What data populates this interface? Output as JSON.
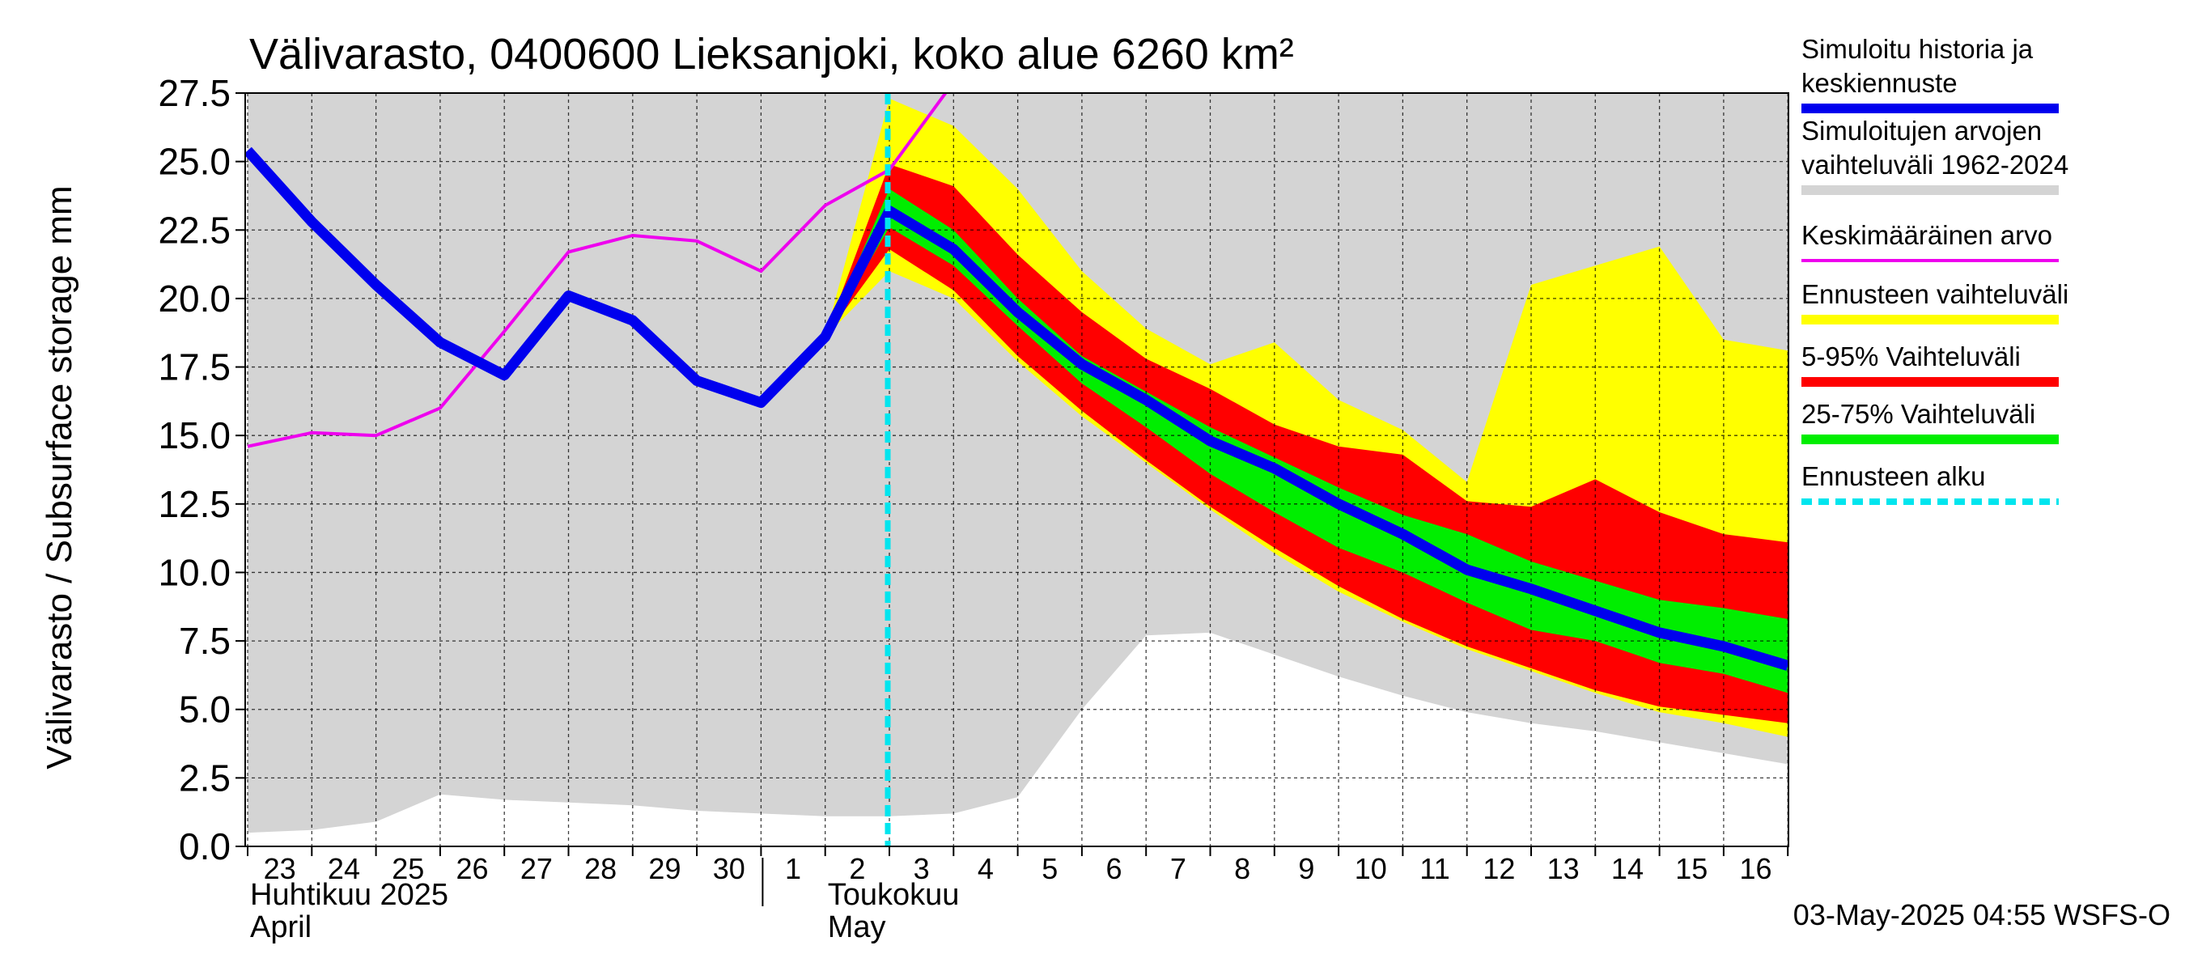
{
  "chart_data": {
    "type": "area",
    "title": "Välivarasto, 0400600 Lieksanjoki, koko alue 6260 km²",
    "ylabel": "Välivarasto / Subsurface storage  mm",
    "ylim": [
      0,
      27.5
    ],
    "yticks": [
      "0.0",
      "2.5",
      "5.0",
      "7.5",
      "10.0",
      "12.5",
      "15.0",
      "17.5",
      "20.0",
      "22.5",
      "25.0",
      "27.5"
    ],
    "x_dates": [
      "2025-04-23",
      "2025-04-24",
      "2025-04-25",
      "2025-04-26",
      "2025-04-27",
      "2025-04-28",
      "2025-04-29",
      "2025-04-30",
      "2025-05-01",
      "2025-05-02",
      "2025-05-03",
      "2025-05-04",
      "2025-05-05",
      "2025-05-06",
      "2025-05-07",
      "2025-05-08",
      "2025-05-09",
      "2025-05-10",
      "2025-05-11",
      "2025-05-12",
      "2025-05-13",
      "2025-05-14",
      "2025-05-15",
      "2025-05-16",
      "2025-05-17"
    ],
    "xtick_labels": [
      "23",
      "24",
      "25",
      "26",
      "27",
      "28",
      "29",
      "30",
      "1",
      "2",
      "3",
      "4",
      "5",
      "6",
      "7",
      "8",
      "9",
      "10",
      "11",
      "12",
      "13",
      "14",
      "15",
      "16"
    ],
    "month_labels": [
      {
        "line1": "Huhtikuu  2025",
        "line2": "April",
        "start_index": 0
      },
      {
        "line1": "Toukokuu",
        "line2": "May",
        "start_index": 9
      }
    ],
    "forecast_start_index": 10,
    "hist_range": {
      "x_index": [
        0,
        1,
        2,
        3,
        4,
        5,
        6,
        7,
        8,
        9,
        10,
        11,
        12,
        13,
        14,
        15,
        16,
        17,
        18,
        19,
        20,
        21,
        22,
        23,
        24
      ],
      "low": [
        0.5,
        0.6,
        0.9,
        1.9,
        1.7,
        1.6,
        1.5,
        1.3,
        1.2,
        1.1,
        1.1,
        1.2,
        1.8,
        5.0,
        7.7,
        7.8,
        7.0,
        6.2,
        5.5,
        4.9,
        4.5,
        4.2,
        3.8,
        3.4,
        3.0
      ],
      "high": [
        27.5,
        27.5,
        27.5,
        27.5,
        27.5,
        27.5,
        27.5,
        27.5,
        27.5,
        27.5,
        27.5,
        27.5,
        27.5,
        27.5,
        27.5,
        27.5,
        27.5,
        27.5,
        27.5,
        27.5,
        27.5,
        27.5,
        27.5,
        27.5,
        27.5
      ]
    },
    "forecast_range": {
      "x_index": [
        9,
        10,
        11,
        12,
        13,
        14,
        15,
        16,
        17,
        18,
        19,
        20,
        21,
        22,
        23,
        24
      ],
      "low": [
        18.6,
        21.0,
        20.0,
        17.7,
        15.7,
        14.0,
        12.3,
        10.7,
        9.3,
        8.2,
        7.2,
        6.4,
        5.6,
        4.9,
        4.5,
        4.0
      ],
      "high": [
        18.6,
        27.3,
        26.3,
        24.0,
        21.0,
        18.9,
        17.6,
        18.4,
        16.3,
        15.2,
        13.3,
        20.5,
        21.2,
        21.9,
        18.5,
        18.1
      ]
    },
    "p5_95": {
      "x_index": [
        9,
        10,
        11,
        12,
        13,
        14,
        15,
        16,
        17,
        18,
        19,
        20,
        21,
        22,
        23,
        24
      ],
      "low": [
        18.6,
        21.8,
        20.3,
        17.9,
        15.9,
        14.1,
        12.4,
        10.9,
        9.5,
        8.3,
        7.3,
        6.5,
        5.7,
        5.1,
        4.8,
        4.5
      ],
      "high": [
        18.6,
        24.9,
        24.1,
        21.6,
        19.5,
        17.8,
        16.7,
        15.4,
        14.6,
        14.3,
        12.6,
        12.4,
        13.4,
        12.2,
        11.4,
        11.1
      ]
    },
    "p25_75": {
      "x_index": [
        9,
        10,
        11,
        12,
        13,
        14,
        15,
        16,
        17,
        18,
        19,
        20,
        21,
        22,
        23,
        24
      ],
      "low": [
        18.6,
        22.6,
        21.2,
        19.0,
        16.9,
        15.3,
        13.6,
        12.2,
        10.9,
        10.0,
        8.9,
        7.9,
        7.5,
        6.7,
        6.3,
        5.6
      ],
      "high": [
        18.6,
        24.0,
        22.5,
        20.0,
        17.9,
        16.6,
        15.3,
        14.2,
        13.1,
        12.1,
        11.4,
        10.4,
        9.7,
        9.0,
        8.7,
        8.3
      ]
    },
    "average": {
      "x_index": [
        0,
        1,
        2,
        3,
        4,
        5,
        6,
        7,
        8,
        9,
        10,
        11
      ],
      "values": [
        14.6,
        15.1,
        15.0,
        16.0,
        18.8,
        21.7,
        22.3,
        22.1,
        21.0,
        23.4,
        24.7,
        27.9
      ]
    },
    "median_line": {
      "x_index": [
        0,
        1,
        2,
        3,
        4,
        5,
        6,
        7,
        8,
        9,
        10,
        11,
        12,
        13,
        14,
        15,
        16,
        17,
        18,
        19,
        20,
        21,
        22,
        23,
        24
      ],
      "values": [
        25.4,
        22.8,
        20.5,
        18.4,
        17.2,
        20.1,
        19.2,
        17.0,
        16.2,
        18.6,
        23.2,
        21.8,
        19.5,
        17.6,
        16.3,
        14.8,
        13.8,
        12.5,
        11.4,
        10.1,
        9.4,
        8.6,
        7.8,
        7.3,
        6.6
      ]
    },
    "legend_placement": "right",
    "legend": [
      {
        "label_lines": [
          "Simuloitu historia ja",
          "keskiennuste"
        ],
        "color": "#0000ee",
        "style": "thick"
      },
      {
        "label_lines": [
          "Simuloitujen arvojen",
          "vaihteluväli 1962-2024"
        ],
        "color": "#d4d4d4",
        "style": "band"
      },
      {
        "label_lines": [
          "Keskimääräinen arvo"
        ],
        "color": "#ee00ee",
        "style": "line"
      },
      {
        "label_lines": [
          "Ennusteen vaihteluväli"
        ],
        "color": "#ffff00",
        "style": "band"
      },
      {
        "label_lines": [
          "5-95% Vaihteluväli"
        ],
        "color": "#ff0000",
        "style": "band"
      },
      {
        "label_lines": [
          "25-75% Vaihteluväli"
        ],
        "color": "#00ee00",
        "style": "band"
      },
      {
        "label_lines": [
          "Ennusteen alku"
        ],
        "color": "#00e5ee",
        "style": "dashed"
      }
    ],
    "colors": {
      "hist_range": "#d4d4d4",
      "forecast_range": "#ffff00",
      "p5_95": "#ff0000",
      "p25_75": "#00ee00",
      "median": "#0000ee",
      "average": "#ee00ee",
      "forecast_start": "#00e5ee"
    },
    "grid": true,
    "footer": "03-May-2025 04:55 WSFS-O"
  }
}
